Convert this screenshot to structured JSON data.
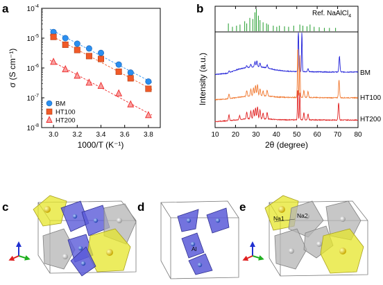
{
  "panels": {
    "a": "a",
    "b": "b",
    "c": "c",
    "d": "d",
    "e": "e"
  },
  "chart_data": [
    {
      "type": "scatter",
      "panel": "a",
      "xlabel": "1000/T (K⁻¹)",
      "ylabel": "σ (S cm⁻¹)",
      "xlim": [
        2.9,
        3.9
      ],
      "ylim_log10": [
        -8,
        -4
      ],
      "y_scale": "log",
      "grid": false,
      "legend_position": "bottom-left",
      "x_ticks": [
        "3.0",
        "3.2",
        "3.4",
        "3.6",
        "3.8"
      ],
      "y_ticks": [
        {
          "base": "10",
          "exp": "-4",
          "log": -4
        },
        {
          "base": "10",
          "exp": "-5",
          "log": -5
        },
        {
          "base": "10",
          "exp": "-6",
          "log": -6
        },
        {
          "base": "10",
          "exp": "-7",
          "log": -7
        },
        {
          "base": "10",
          "exp": "-8",
          "log": -8
        }
      ],
      "series": [
        {
          "name": "BM",
          "marker": "circle",
          "color": "#2a8ff0",
          "x": [
            3.0,
            3.1,
            3.2,
            3.3,
            3.4,
            3.55,
            3.65,
            3.8
          ],
          "values": [
            1.6e-05,
            1e-05,
            6.5e-06,
            4.5e-06,
            3.2e-06,
            1.3e-06,
            7e-07,
            3.5e-07
          ]
        },
        {
          "name": "HT100",
          "marker": "square",
          "color": "#f05a28",
          "x": [
            3.0,
            3.1,
            3.2,
            3.3,
            3.4,
            3.55,
            3.65,
            3.8
          ],
          "values": [
            1.1e-05,
            6e-06,
            4e-06,
            2.5e-06,
            2e-06,
            7.5e-07,
            4.5e-07,
            2e-07
          ]
        },
        {
          "name": "HT200",
          "marker": "triangle",
          "color": "#ee2828",
          "x": [
            3.0,
            3.1,
            3.2,
            3.3,
            3.4,
            3.55,
            3.65,
            3.8
          ],
          "values": [
            1.6e-06,
            9e-07,
            5.5e-07,
            3.2e-07,
            2.5e-07,
            1.4e-07,
            6e-08,
            2.6e-08
          ]
        }
      ]
    },
    {
      "type": "line",
      "panel": "b",
      "xlabel": "2θ (degree)",
      "ylabel": "Intensity (a.u.)",
      "xlim": [
        10,
        80
      ],
      "grid": false,
      "x_ticks": [
        "10",
        "20",
        "30",
        "40",
        "50",
        "60",
        "70",
        "80"
      ],
      "reference": {
        "name": "Ref. NaAlCl",
        "subscript": "4",
        "color": "#1f9b2a",
        "peaks": [
          [
            16.5,
            0.35
          ],
          [
            18.5,
            0.2
          ],
          [
            20.5,
            0.25
          ],
          [
            22.2,
            0.3
          ],
          [
            24.5,
            0.45
          ],
          [
            25.5,
            0.35
          ],
          [
            27.0,
            0.6
          ],
          [
            28.5,
            0.55
          ],
          [
            29.5,
            0.85
          ],
          [
            30.2,
            1.0
          ],
          [
            31.2,
            0.7
          ],
          [
            32.0,
            0.5
          ],
          [
            33.5,
            0.4
          ],
          [
            35.2,
            0.35
          ],
          [
            36.0,
            0.3
          ],
          [
            38.5,
            0.25
          ],
          [
            40.2,
            0.2
          ],
          [
            41.5,
            0.25
          ],
          [
            44.0,
            0.22
          ],
          [
            46.0,
            0.2
          ],
          [
            48.5,
            0.25
          ],
          [
            51.5,
            0.3
          ],
          [
            53.0,
            0.25
          ],
          [
            55.0,
            0.22
          ],
          [
            56.5,
            0.3
          ],
          [
            58.5,
            0.2
          ],
          [
            61.0,
            0.18
          ],
          [
            63.5,
            0.15
          ],
          [
            66.0,
            0.15
          ],
          [
            69.0,
            0.15
          ]
        ]
      },
      "series": [
        {
          "name": "BM",
          "color": "#2020d8",
          "background": [
            [
              10,
              0.1
            ],
            [
              16,
              0.15
            ],
            [
              21,
              0.35
            ],
            [
              25,
              0.45
            ],
            [
              30,
              0.5
            ],
            [
              35,
              0.45
            ],
            [
              40,
              0.32
            ],
            [
              45,
              0.26
            ],
            [
              55,
              0.24
            ],
            [
              65,
              0.22
            ],
            [
              80,
              0.22
            ]
          ],
          "peaks": [
            [
              16.8,
              0.1
            ],
            [
              25.5,
              0.1
            ],
            [
              27.5,
              0.15
            ],
            [
              29.5,
              0.25
            ],
            [
              30.5,
              0.3
            ],
            [
              32.0,
              0.2
            ],
            [
              35.5,
              0.15
            ],
            [
              50.8,
              2.2
            ],
            [
              52.5,
              2.0
            ],
            [
              55.5,
              0.15
            ],
            [
              70.9,
              0.8
            ]
          ]
        },
        {
          "name": "HT100",
          "color": "#f07830",
          "background": [
            [
              10,
              0.08
            ],
            [
              16,
              0.12
            ],
            [
              21,
              0.2
            ],
            [
              25,
              0.25
            ],
            [
              30,
              0.3
            ],
            [
              35,
              0.28
            ],
            [
              40,
              0.22
            ],
            [
              45,
              0.2
            ],
            [
              55,
              0.2
            ],
            [
              65,
              0.18
            ],
            [
              80,
              0.18
            ]
          ],
          "peaks": [
            [
              16.8,
              0.25
            ],
            [
              25.5,
              0.3
            ],
            [
              27.5,
              0.35
            ],
            [
              28.8,
              0.4
            ],
            [
              29.8,
              0.5
            ],
            [
              30.8,
              0.55
            ],
            [
              32.0,
              0.35
            ],
            [
              33.5,
              0.25
            ],
            [
              35.5,
              0.3
            ],
            [
              50.5,
              2.6
            ],
            [
              51.5,
              2.2
            ],
            [
              53.5,
              0.35
            ],
            [
              55.5,
              0.3
            ],
            [
              70.7,
              0.9
            ]
          ]
        },
        {
          "name": "HT200",
          "color": "#e02020",
          "background": [
            [
              10,
              0.06
            ],
            [
              16,
              0.1
            ],
            [
              21,
              0.15
            ],
            [
              25,
              0.2
            ],
            [
              30,
              0.22
            ],
            [
              35,
              0.2
            ],
            [
              40,
              0.16
            ],
            [
              45,
              0.15
            ],
            [
              55,
              0.15
            ],
            [
              65,
              0.14
            ],
            [
              80,
              0.14
            ]
          ],
          "peaks": [
            [
              16.8,
              0.3
            ],
            [
              22.0,
              0.2
            ],
            [
              25.5,
              0.35
            ],
            [
              27.5,
              0.4
            ],
            [
              28.8,
              0.45
            ],
            [
              29.8,
              0.55
            ],
            [
              30.8,
              0.6
            ],
            [
              32.0,
              0.45
            ],
            [
              33.5,
              0.3
            ],
            [
              35.5,
              0.35
            ],
            [
              50.5,
              1.6
            ],
            [
              51.5,
              1.4
            ],
            [
              53.5,
              0.35
            ],
            [
              55.5,
              0.3
            ],
            [
              70.5,
              0.9
            ]
          ]
        }
      ]
    }
  ],
  "structures": {
    "e_labels": {
      "na1": "Na1",
      "na2": "Na2"
    },
    "d_labels": {
      "al": "Al"
    },
    "axis_colors": {
      "up": "#2030d0",
      "right": "#20b020",
      "left": "#e02020"
    },
    "colors": {
      "na_poly": "#e6e62a",
      "na_atom": "#d9c020",
      "al_poly": "#5a5ad8",
      "cl_poly": "#b4b4b4"
    }
  }
}
